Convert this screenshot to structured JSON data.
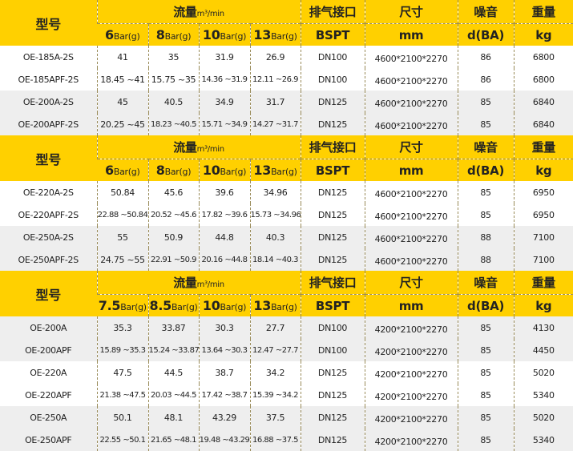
{
  "colors": {
    "header": "#FFD000",
    "row_gray": "#EEEEEE",
    "row_white": "#FFFFFF"
  },
  "sections": [
    {
      "header": {
        "model": "型号",
        "flow": "流量",
        "flow_unit": "m³/min",
        "outlet": "排气接口",
        "size": "尺寸",
        "noise": "噪音",
        "weight": "重量",
        "pressures": [
          {
            "num": "6",
            "unit": "Bar(g)"
          },
          {
            "num": "8",
            "unit": "Bar(g)"
          },
          {
            "num": "10",
            "unit": "Bar(g)"
          },
          {
            "num": "13",
            "unit": "Bar(g)"
          }
        ],
        "outlet_unit": "BSPT",
        "size_unit": "mm",
        "noise_unit": "d(BA)",
        "weight_unit": "kg"
      },
      "rows": [
        {
          "model": "OE-185A-2S",
          "flow": [
            "41",
            "35",
            "31.9",
            "26.9"
          ],
          "outlet": "DN100",
          "size": "4600*2100*2270",
          "noise": "86",
          "weight": "6800",
          "shade": "white"
        },
        {
          "model": "OE-185APF-2S",
          "flow": [
            "18.45 ~41",
            "15.75 ~35",
            "14.36 ~31.9",
            "12.11 ~26.9"
          ],
          "outlet": "DN100",
          "size": "4600*2100*2270",
          "noise": "86",
          "weight": "6800",
          "shade": "white"
        },
        {
          "model": "OE-200A-2S",
          "flow": [
            "45",
            "40.5",
            "34.9",
            "31.7"
          ],
          "outlet": "DN125",
          "size": "4600*2100*2270",
          "noise": "85",
          "weight": "6840",
          "shade": "gray"
        },
        {
          "model": "OE-200APF-2S",
          "flow": [
            "20.25 ~45",
            "18.23 ~40.5",
            "15.71 ~34.9",
            "14.27 ~31.7"
          ],
          "outlet": "DN125",
          "size": "4600*2100*2270",
          "noise": "85",
          "weight": "6840",
          "shade": "gray"
        }
      ]
    },
    {
      "header": {
        "model": "型号",
        "flow": "流量",
        "flow_unit": "m³/min",
        "outlet": "排气接口",
        "size": "尺寸",
        "noise": "噪音",
        "weight": "重量",
        "pressures": [
          {
            "num": "6",
            "unit": "Bar(g)"
          },
          {
            "num": "8",
            "unit": "Bar(g)"
          },
          {
            "num": "10",
            "unit": "Bar(g)"
          },
          {
            "num": "13",
            "unit": "Bar(g)"
          }
        ],
        "outlet_unit": "BSPT",
        "size_unit": "mm",
        "noise_unit": "d(BA)",
        "weight_unit": "kg"
      },
      "rows": [
        {
          "model": "OE-220A-2S",
          "flow": [
            "50.84",
            "45.6",
            "39.6",
            "34.96"
          ],
          "outlet": "DN125",
          "size": "4600*2100*2270",
          "noise": "85",
          "weight": "6950",
          "shade": "white"
        },
        {
          "model": "OE-220APF-2S",
          "flow": [
            "22.88 ~50.84",
            "20.52 ~45.6",
            "17.82 ~39.6",
            "15.73 ~34.96"
          ],
          "outlet": "DN125",
          "size": "4600*2100*2270",
          "noise": "85",
          "weight": "6950",
          "shade": "white"
        },
        {
          "model": "OE-250A-2S",
          "flow": [
            "55",
            "50.9",
            "44.8",
            "40.3"
          ],
          "outlet": "DN125",
          "size": "4600*2100*2270",
          "noise": "88",
          "weight": "7100",
          "shade": "gray"
        },
        {
          "model": "OE-250APF-2S",
          "flow": [
            "24.75 ~55",
            "22.91 ~50.9",
            "20.16 ~44.8",
            "18.14 ~40.3"
          ],
          "outlet": "DN125",
          "size": "4600*2100*2270",
          "noise": "88",
          "weight": "7100",
          "shade": "gray"
        }
      ]
    },
    {
      "header": {
        "model": "型号",
        "flow": "流量",
        "flow_unit": "m³/min",
        "outlet": "排气接口",
        "size": "尺寸",
        "noise": "噪音",
        "weight": "重量",
        "pressures": [
          {
            "num": "7.5",
            "unit": "Bar(g)"
          },
          {
            "num": "8.5",
            "unit": "Bar(g)"
          },
          {
            "num": "10",
            "unit": "Bar(g)"
          },
          {
            "num": "13",
            "unit": "Bar(g)"
          }
        ],
        "outlet_unit": "BSPT",
        "size_unit": "mm",
        "noise_unit": "d(BA)",
        "weight_unit": "kg"
      },
      "rows": [
        {
          "model": "OE-200A",
          "flow": [
            "35.3",
            "33.87",
            "30.3",
            "27.7"
          ],
          "outlet": "DN100",
          "size": "4200*2100*2270",
          "noise": "85",
          "weight": "4130",
          "shade": "gray"
        },
        {
          "model": "OE-200APF",
          "flow": [
            "15.89 ~35.3",
            "15.24 ~33.87",
            "13.64 ~30.3",
            "12.47 ~27.7"
          ],
          "outlet": "DN100",
          "size": "4200*2100*2270",
          "noise": "85",
          "weight": "4450",
          "shade": "gray"
        },
        {
          "model": "OE-220A",
          "flow": [
            "47.5",
            "44.5",
            "38.7",
            "34.2"
          ],
          "outlet": "DN125",
          "size": "4200*2100*2270",
          "noise": "85",
          "weight": "5020",
          "shade": "white"
        },
        {
          "model": "OE-220APF",
          "flow": [
            "21.38 ~47.5",
            "20.03 ~44.5",
            "17.42 ~38.7",
            "15.39 ~34.2"
          ],
          "outlet": "DN125",
          "size": "4200*2100*2270",
          "noise": "85",
          "weight": "5340",
          "shade": "white"
        },
        {
          "model": "OE-250A",
          "flow": [
            "50.1",
            "48.1",
            "43.29",
            "37.5"
          ],
          "outlet": "DN125",
          "size": "4200*2100*2270",
          "noise": "85",
          "weight": "5020",
          "shade": "gray"
        },
        {
          "model": "OE-250APF",
          "flow": [
            "22.55 ~50.1",
            "21.65 ~48.1",
            "19.48 ~43.29",
            "16.88 ~37.5"
          ],
          "outlet": "DN125",
          "size": "4200*2100*2270",
          "noise": "85",
          "weight": "5340",
          "shade": "gray"
        }
      ]
    }
  ]
}
